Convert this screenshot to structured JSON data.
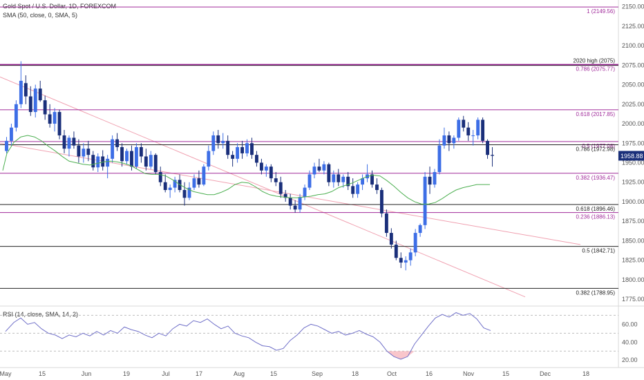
{
  "header": {
    "title": "Gold Spot / U.S. Dollar, 1D, FOREXCOM",
    "sma_label": "SMA (50, close, 0, SMA, 5)",
    "rsi_label": "RSI (14, close, SMA, 14, 2)"
  },
  "colors": {
    "up": "#3d6ee6",
    "down": "#1a2f7a",
    "sma": "#4caf50",
    "fib": "#a02a9a",
    "level": "#222222",
    "channel": "#f0a0b0",
    "rsi": "#6f6fc8",
    "price_badge": "#1a2f7a"
  },
  "chart_data": [
    {
      "type": "candlestick",
      "title": "Gold Spot / U.S. Dollar, 1D, FOREXCOM",
      "overlay": "SMA (50, close, 0, SMA, 5)",
      "ylim": [
        1768,
        2155
      ],
      "y_ticks": [
        1775,
        1800,
        1825,
        1850,
        1875,
        1900,
        1925,
        1950,
        1975,
        2000,
        2025,
        2050,
        2075,
        2100,
        2125,
        2150
      ],
      "x_labels": [
        "May",
        "15",
        "Jun",
        "19",
        "Jul",
        "17",
        "Aug",
        "15",
        "Sep",
        "18",
        "Oct",
        "16",
        "Nov",
        "15",
        "Dec",
        "18"
      ],
      "last_price": "1958.88",
      "candles": [
        [
          1965,
          1983,
          1962,
          1978
        ],
        [
          1978,
          2000,
          1972,
          1995
        ],
        [
          1995,
          2030,
          1990,
          2025
        ],
        [
          2025,
          2080,
          2020,
          2055
        ],
        [
          2052,
          2062,
          2025,
          2035
        ],
        [
          2035,
          2048,
          2010,
          2015
        ],
        [
          2015,
          2050,
          2008,
          2045
        ],
        [
          2045,
          2055,
          2028,
          2030
        ],
        [
          2030,
          2036,
          2005,
          2012
        ],
        [
          2012,
          2025,
          1995,
          2000
        ],
        [
          2000,
          2020,
          1990,
          2015
        ],
        [
          2015,
          2018,
          1980,
          1985
        ],
        [
          1985,
          1992,
          1962,
          1968
        ],
        [
          1968,
          1985,
          1958,
          1982
        ],
        [
          1982,
          1990,
          1968,
          1972
        ],
        [
          1972,
          1980,
          1950,
          1958
        ],
        [
          1958,
          1975,
          1950,
          1968
        ],
        [
          1968,
          1978,
          1952,
          1960
        ],
        [
          1960,
          1965,
          1940,
          1944
        ],
        [
          1944,
          1962,
          1938,
          1958
        ],
        [
          1958,
          1966,
          1940,
          1945
        ],
        [
          1945,
          1960,
          1930,
          1955
        ],
        [
          1955,
          1985,
          1950,
          1980
        ],
        [
          1980,
          1988,
          1965,
          1970
        ],
        [
          1970,
          1975,
          1945,
          1952
        ],
        [
          1952,
          1968,
          1948,
          1965
        ],
        [
          1965,
          1972,
          1940,
          1945
        ],
        [
          1945,
          1975,
          1942,
          1970
        ],
        [
          1970,
          1975,
          1950,
          1958
        ],
        [
          1958,
          1968,
          1940,
          1945
        ],
        [
          1945,
          1965,
          1942,
          1960
        ],
        [
          1960,
          1962,
          1935,
          1938
        ],
        [
          1938,
          1945,
          1920,
          1925
        ],
        [
          1925,
          1935,
          1912,
          1915
        ],
        [
          1915,
          1922,
          1905,
          1918
        ],
        [
          1918,
          1932,
          1912,
          1928
        ],
        [
          1928,
          1935,
          1912,
          1915
        ],
        [
          1915,
          1925,
          1895,
          1905
        ],
        [
          1905,
          1925,
          1902,
          1918
        ],
        [
          1918,
          1935,
          1915,
          1930
        ],
        [
          1930,
          1940,
          1918,
          1922
        ],
        [
          1922,
          1948,
          1920,
          1945
        ],
        [
          1945,
          1972,
          1940,
          1965
        ],
        [
          1965,
          1990,
          1960,
          1985
        ],
        [
          1985,
          1992,
          1968,
          1975
        ],
        [
          1975,
          1988,
          1968,
          1978
        ],
        [
          1978,
          1985,
          1955,
          1960
        ],
        [
          1960,
          1965,
          1945,
          1955
        ],
        [
          1955,
          1975,
          1950,
          1970
        ],
        [
          1970,
          1978,
          1955,
          1962
        ],
        [
          1962,
          1980,
          1958,
          1975
        ],
        [
          1975,
          1982,
          1955,
          1960
        ],
        [
          1960,
          1965,
          1945,
          1950
        ],
        [
          1950,
          1955,
          1935,
          1940
        ],
        [
          1940,
          1948,
          1932,
          1945
        ],
        [
          1945,
          1948,
          1925,
          1930
        ],
        [
          1930,
          1938,
          1920,
          1925
        ],
        [
          1925,
          1932,
          1905,
          1910
        ],
        [
          1910,
          1915,
          1900,
          1905
        ],
        [
          1905,
          1910,
          1890,
          1895
        ],
        [
          1895,
          1902,
          1886,
          1890
        ],
        [
          1890,
          1910,
          1886,
          1906
        ],
        [
          1906,
          1922,
          1902,
          1918
        ],
        [
          1918,
          1940,
          1915,
          1935
        ],
        [
          1935,
          1950,
          1930,
          1945
        ],
        [
          1945,
          1955,
          1938,
          1940
        ],
        [
          1940,
          1952,
          1935,
          1948
        ],
        [
          1948,
          1950,
          1920,
          1925
        ],
        [
          1925,
          1940,
          1918,
          1935
        ],
        [
          1935,
          1942,
          1920,
          1925
        ],
        [
          1925,
          1935,
          1918,
          1932
        ],
        [
          1932,
          1938,
          1915,
          1920
        ],
        [
          1920,
          1930,
          1905,
          1910
        ],
        [
          1910,
          1925,
          1905,
          1922
        ],
        [
          1922,
          1935,
          1915,
          1930
        ],
        [
          1930,
          1948,
          1925,
          1935
        ],
        [
          1935,
          1940,
          1918,
          1922
        ],
        [
          1922,
          1930,
          1910,
          1915
        ],
        [
          1915,
          1918,
          1880,
          1885
        ],
        [
          1885,
          1890,
          1855,
          1860
        ],
        [
          1860,
          1866,
          1840,
          1845
        ],
        [
          1845,
          1850,
          1825,
          1828
        ],
        [
          1828,
          1835,
          1815,
          1822
        ],
        [
          1822,
          1830,
          1812,
          1825
        ],
        [
          1825,
          1840,
          1818,
          1835
        ],
        [
          1835,
          1865,
          1830,
          1860
        ],
        [
          1860,
          1872,
          1855,
          1870
        ],
        [
          1870,
          1938,
          1865,
          1932
        ],
        [
          1932,
          1945,
          1910,
          1922
        ],
        [
          1922,
          1942,
          1918,
          1938
        ],
        [
          1938,
          1980,
          1935,
          1972
        ],
        [
          1972,
          1995,
          1968,
          1985
        ],
        [
          1985,
          1990,
          1965,
          1975
        ],
        [
          1975,
          1985,
          1968,
          1982
        ],
        [
          1982,
          2008,
          1978,
          2005
        ],
        [
          2005,
          2010,
          1990,
          1995
        ],
        [
          1995,
          2002,
          1978,
          1985
        ],
        [
          1985,
          1992,
          1972,
          1985
        ],
        [
          1985,
          2008,
          1980,
          2005
        ],
        [
          2005,
          2008,
          1975,
          1978
        ],
        [
          1978,
          1980,
          1955,
          1960
        ],
        [
          1960,
          1970,
          1945,
          1958.88
        ]
      ],
      "sma": [
        [
          4,
          1940
        ],
        [
          10,
          1962
        ],
        [
          20,
          1976
        ],
        [
          30,
          1983
        ],
        [
          40,
          1985
        ],
        [
          50,
          1983
        ],
        [
          60,
          1978
        ],
        [
          70,
          1971
        ],
        [
          80,
          1965
        ],
        [
          90,
          1958
        ],
        [
          100,
          1952
        ],
        [
          110,
          1950
        ],
        [
          120,
          1948
        ],
        [
          130,
          1947
        ],
        [
          140,
          1949
        ],
        [
          150,
          1951
        ],
        [
          160,
          1952
        ],
        [
          170,
          1951
        ],
        [
          180,
          1949
        ],
        [
          190,
          1946
        ],
        [
          200,
          1941
        ],
        [
          210,
          1936
        ],
        [
          220,
          1935
        ],
        [
          230,
          1935
        ],
        [
          240,
          1933
        ],
        [
          250,
          1928
        ],
        [
          260,
          1922
        ],
        [
          270,
          1917
        ],
        [
          280,
          1913
        ],
        [
          290,
          1911
        ],
        [
          300,
          1909
        ],
        [
          310,
          1909
        ],
        [
          320,
          1912
        ],
        [
          330,
          1916
        ],
        [
          340,
          1922
        ],
        [
          350,
          1925
        ],
        [
          360,
          1924
        ],
        [
          370,
          1919
        ],
        [
          380,
          1913
        ],
        [
          390,
          1909
        ],
        [
          400,
          1907
        ],
        [
          410,
          1906
        ],
        [
          420,
          1905
        ],
        [
          430,
          1905
        ],
        [
          440,
          1906
        ],
        [
          450,
          1907
        ],
        [
          460,
          1909
        ],
        [
          470,
          1910
        ],
        [
          480,
          1913
        ],
        [
          490,
          1918
        ],
        [
          500,
          1921
        ],
        [
          510,
          1924
        ],
        [
          520,
          1928
        ],
        [
          530,
          1932
        ],
        [
          540,
          1934
        ],
        [
          550,
          1933
        ],
        [
          560,
          1927
        ],
        [
          570,
          1920
        ],
        [
          580,
          1912
        ],
        [
          590,
          1905
        ],
        [
          600,
          1900
        ],
        [
          610,
          1897
        ],
        [
          620,
          1897
        ],
        [
          630,
          1899
        ],
        [
          640,
          1904
        ],
        [
          650,
          1910
        ],
        [
          660,
          1915
        ],
        [
          670,
          1918
        ],
        [
          680,
          1920
        ],
        [
          690,
          1922
        ],
        [
          700,
          1922
        ],
        [
          709,
          1922
        ]
      ],
      "levels": [
        {
          "price": 2149.56,
          "label": "1 (2149.56)",
          "kind": "fib"
        },
        {
          "price": 2075,
          "label": "2020 high (2075)",
          "kind": "level"
        },
        {
          "price": 2075.77,
          "label": "0.786 (2075.77)",
          "kind": "fib"
        },
        {
          "price": 2017.85,
          "label": "0.618 (2017.85)",
          "kind": "fib"
        },
        {
          "price": 1977.08,
          "label": "0.5 (1977.08)",
          "kind": "fib"
        },
        {
          "price": 1972.98,
          "label": "0.786 (1972.98)",
          "kind": "level"
        },
        {
          "price": 1936.47,
          "label": "0.382 (1936.47)",
          "kind": "fib"
        },
        {
          "price": 1896.46,
          "label": "0.618 (1896.46)",
          "kind": "level"
        },
        {
          "price": 1886.13,
          "label": "0.236 (1886.13)",
          "kind": "fib"
        },
        {
          "price": 1842.71,
          "label": "0.5 (1842.71)",
          "kind": "level"
        },
        {
          "price": 1788.95,
          "label": "0.382 (1788.95)",
          "kind": "level"
        }
      ],
      "channel": [
        {
          "from": [
            0,
            2060
          ],
          "to": [
            760,
            1778
          ]
        },
        {
          "from": [
            0,
            1975
          ],
          "to": [
            840,
            1845
          ]
        }
      ]
    },
    {
      "type": "line",
      "title": "RSI (14, close, SMA, 14, 2)",
      "ylim": [
        14,
        78
      ],
      "y_ticks": [
        20.0,
        40.0,
        60.0
      ],
      "bands": [
        70,
        50,
        30
      ],
      "values": [
        [
          8,
          52
        ],
        [
          20,
          62
        ],
        [
          30,
          67
        ],
        [
          40,
          60
        ],
        [
          50,
          62
        ],
        [
          60,
          55
        ],
        [
          70,
          50
        ],
        [
          80,
          48
        ],
        [
          90,
          44
        ],
        [
          100,
          48
        ],
        [
          110,
          46
        ],
        [
          120,
          50
        ],
        [
          130,
          47
        ],
        [
          140,
          52
        ],
        [
          150,
          48
        ],
        [
          160,
          53
        ],
        [
          170,
          50
        ],
        [
          180,
          57
        ],
        [
          190,
          54
        ],
        [
          200,
          52
        ],
        [
          210,
          48
        ],
        [
          220,
          45
        ],
        [
          230,
          50
        ],
        [
          240,
          47
        ],
        [
          250,
          55
        ],
        [
          260,
          60
        ],
        [
          270,
          58
        ],
        [
          280,
          64
        ],
        [
          290,
          62
        ],
        [
          300,
          66
        ],
        [
          310,
          60
        ],
        [
          320,
          55
        ],
        [
          330,
          58
        ],
        [
          340,
          50
        ],
        [
          350,
          47
        ],
        [
          360,
          45
        ],
        [
          370,
          40
        ],
        [
          380,
          36
        ],
        [
          390,
          35
        ],
        [
          400,
          31
        ],
        [
          410,
          33
        ],
        [
          420,
          42
        ],
        [
          430,
          48
        ],
        [
          440,
          56
        ],
        [
          450,
          60
        ],
        [
          460,
          58
        ],
        [
          470,
          54
        ],
        [
          480,
          50
        ],
        [
          490,
          52
        ],
        [
          500,
          48
        ],
        [
          510,
          50
        ],
        [
          520,
          53
        ],
        [
          530,
          49
        ],
        [
          540,
          46
        ],
        [
          550,
          40
        ],
        [
          560,
          30
        ],
        [
          570,
          24
        ],
        [
          580,
          21
        ],
        [
          590,
          24
        ],
        [
          600,
          38
        ],
        [
          610,
          48
        ],
        [
          620,
          58
        ],
        [
          630,
          67
        ],
        [
          640,
          71
        ],
        [
          650,
          68
        ],
        [
          660,
          73
        ],
        [
          670,
          70
        ],
        [
          680,
          72
        ],
        [
          690,
          66
        ],
        [
          700,
          56
        ],
        [
          710,
          53
        ]
      ]
    }
  ]
}
